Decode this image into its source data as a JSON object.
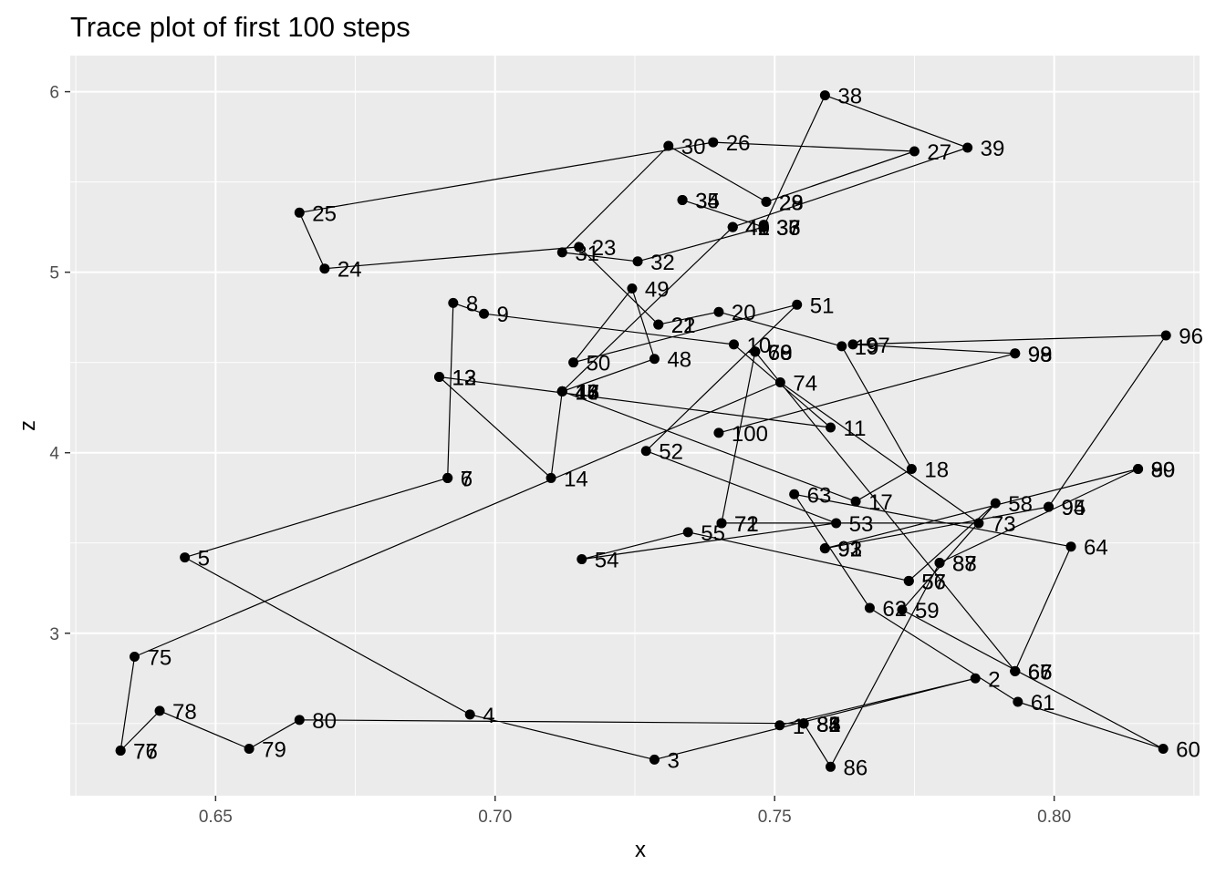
{
  "chart_data": {
    "type": "scatter",
    "title": "Trace plot of first 100 steps",
    "xlabel": "x",
    "ylabel": "z",
    "xlim": [
      0.624,
      0.826
    ],
    "ylim": [
      2.1,
      6.2
    ],
    "x_ticks": [
      0.65,
      0.7,
      0.75,
      0.8
    ],
    "x_tick_labels": [
      "0.65",
      "0.70",
      "0.75",
      "0.80"
    ],
    "y_ticks": [
      3,
      4,
      5,
      6
    ],
    "y_tick_labels": [
      "3",
      "4",
      "5",
      "6"
    ],
    "grid": true,
    "legend": "none",
    "colors": {
      "panel": "#ebebeb",
      "grid": "#ffffff",
      "points": "#000000",
      "path": "#000000"
    },
    "points": [
      {
        "step": "1",
        "x": 0.7509,
        "z": 2.49
      },
      {
        "step": "2",
        "x": 0.7859,
        "z": 2.75
      },
      {
        "step": "3",
        "x": 0.7285,
        "z": 2.3
      },
      {
        "step": "4",
        "x": 0.6955,
        "z": 2.55
      },
      {
        "step": "5",
        "x": 0.6445,
        "z": 3.42
      },
      {
        "step": "6",
        "x": 0.6915,
        "z": 3.86
      },
      {
        "step": "7",
        "x": 0.6915,
        "z": 3.86
      },
      {
        "step": "8",
        "x": 0.6925,
        "z": 4.83
      },
      {
        "step": "9",
        "x": 0.698,
        "z": 4.77
      },
      {
        "step": "10",
        "x": 0.7427,
        "z": 4.6
      },
      {
        "step": "11",
        "x": 0.76,
        "z": 4.14
      },
      {
        "step": "12",
        "x": 0.69,
        "z": 4.42
      },
      {
        "step": "13",
        "x": 0.69,
        "z": 4.42
      },
      {
        "step": "14",
        "x": 0.71,
        "z": 3.86
      },
      {
        "step": "15",
        "x": 0.712,
        "z": 4.34
      },
      {
        "step": "16",
        "x": 0.712,
        "z": 4.34
      },
      {
        "step": "17",
        "x": 0.7645,
        "z": 3.73
      },
      {
        "step": "18",
        "x": 0.7745,
        "z": 3.91
      },
      {
        "step": "19",
        "x": 0.762,
        "z": 4.59
      },
      {
        "step": "20",
        "x": 0.74,
        "z": 4.78
      },
      {
        "step": "21",
        "x": 0.7292,
        "z": 4.71
      },
      {
        "step": "22",
        "x": 0.7292,
        "z": 4.71
      },
      {
        "step": "23",
        "x": 0.715,
        "z": 5.14
      },
      {
        "step": "24",
        "x": 0.6695,
        "z": 5.02
      },
      {
        "step": "25",
        "x": 0.665,
        "z": 5.33
      },
      {
        "step": "26",
        "x": 0.739,
        "z": 5.72
      },
      {
        "step": "27",
        "x": 0.775,
        "z": 5.67
      },
      {
        "step": "28",
        "x": 0.7485,
        "z": 5.39
      },
      {
        "step": "29",
        "x": 0.7485,
        "z": 5.39
      },
      {
        "step": "30",
        "x": 0.731,
        "z": 5.7
      },
      {
        "step": "31",
        "x": 0.712,
        "z": 5.11
      },
      {
        "step": "32",
        "x": 0.7255,
        "z": 5.06
      },
      {
        "step": "33",
        "x": 0.748,
        "z": 5.25
      },
      {
        "step": "34",
        "x": 0.7335,
        "z": 5.4
      },
      {
        "step": "35",
        "x": 0.7335,
        "z": 5.4
      },
      {
        "step": "36",
        "x": 0.748,
        "z": 5.25
      },
      {
        "step": "37",
        "x": 0.748,
        "z": 5.25
      },
      {
        "step": "38",
        "x": 0.759,
        "z": 5.98
      },
      {
        "step": "39",
        "x": 0.7845,
        "z": 5.69
      },
      {
        "step": "40",
        "x": 0.7425,
        "z": 5.25
      },
      {
        "step": "41",
        "x": 0.7425,
        "z": 5.25
      },
      {
        "step": "42",
        "x": 0.7425,
        "z": 5.25
      },
      {
        "step": "43",
        "x": 0.712,
        "z": 4.34
      },
      {
        "step": "44",
        "x": 0.712,
        "z": 4.34
      },
      {
        "step": "45",
        "x": 0.712,
        "z": 4.34
      },
      {
        "step": "46",
        "x": 0.712,
        "z": 4.34
      },
      {
        "step": "47",
        "x": 0.712,
        "z": 4.34
      },
      {
        "step": "48",
        "x": 0.7285,
        "z": 4.52
      },
      {
        "step": "49",
        "x": 0.7245,
        "z": 4.91
      },
      {
        "step": "50",
        "x": 0.714,
        "z": 4.5
      },
      {
        "step": "51",
        "x": 0.754,
        "z": 4.82
      },
      {
        "step": "52",
        "x": 0.727,
        "z": 4.01
      },
      {
        "step": "53",
        "x": 0.761,
        "z": 3.61
      },
      {
        "step": "54",
        "x": 0.7155,
        "z": 3.41
      },
      {
        "step": "55",
        "x": 0.7345,
        "z": 3.56
      },
      {
        "step": "56",
        "x": 0.774,
        "z": 3.29
      },
      {
        "step": "57",
        "x": 0.774,
        "z": 3.29
      },
      {
        "step": "58",
        "x": 0.7895,
        "z": 3.72
      },
      {
        "step": "59",
        "x": 0.7728,
        "z": 3.13
      },
      {
        "step": "60",
        "x": 0.8195,
        "z": 2.36
      },
      {
        "step": "61",
        "x": 0.7935,
        "z": 2.62
      },
      {
        "step": "62",
        "x": 0.767,
        "z": 3.14
      },
      {
        "step": "63",
        "x": 0.7535,
        "z": 3.77
      },
      {
        "step": "64",
        "x": 0.803,
        "z": 3.48
      },
      {
        "step": "65",
        "x": 0.793,
        "z": 2.79
      },
      {
        "step": "66",
        "x": 0.793,
        "z": 2.79
      },
      {
        "step": "67",
        "x": 0.793,
        "z": 2.79
      },
      {
        "step": "68",
        "x": 0.7465,
        "z": 4.56
      },
      {
        "step": "69",
        "x": 0.7465,
        "z": 4.56
      },
      {
        "step": "70",
        "x": 0.7465,
        "z": 4.56
      },
      {
        "step": "71",
        "x": 0.7405,
        "z": 3.61
      },
      {
        "step": "72",
        "x": 0.7405,
        "z": 3.61
      },
      {
        "step": "73",
        "x": 0.7865,
        "z": 3.61
      },
      {
        "step": "74",
        "x": 0.751,
        "z": 4.39
      },
      {
        "step": "75",
        "x": 0.6355,
        "z": 2.87
      },
      {
        "step": "76",
        "x": 0.633,
        "z": 2.35
      },
      {
        "step": "77",
        "x": 0.633,
        "z": 2.35
      },
      {
        "step": "78",
        "x": 0.64,
        "z": 2.57
      },
      {
        "step": "79",
        "x": 0.656,
        "z": 2.36
      },
      {
        "step": "80",
        "x": 0.665,
        "z": 2.52
      },
      {
        "step": "81",
        "x": 0.7552,
        "z": 2.5
      },
      {
        "step": "82",
        "x": 0.7552,
        "z": 2.5
      },
      {
        "step": "83",
        "x": 0.7552,
        "z": 2.5
      },
      {
        "step": "84",
        "x": 0.7552,
        "z": 2.5
      },
      {
        "step": "85",
        "x": 0.7552,
        "z": 2.5
      },
      {
        "step": "86",
        "x": 0.76,
        "z": 2.26
      },
      {
        "step": "87",
        "x": 0.7795,
        "z": 3.39
      },
      {
        "step": "88",
        "x": 0.7795,
        "z": 3.39
      },
      {
        "step": "89",
        "x": 0.815,
        "z": 3.91
      },
      {
        "step": "90",
        "x": 0.815,
        "z": 3.91
      },
      {
        "step": "91",
        "x": 0.759,
        "z": 3.47
      },
      {
        "step": "92",
        "x": 0.759,
        "z": 3.47
      },
      {
        "step": "93",
        "x": 0.759,
        "z": 3.47
      },
      {
        "step": "94",
        "x": 0.799,
        "z": 3.7
      },
      {
        "step": "95",
        "x": 0.799,
        "z": 3.7
      },
      {
        "step": "96",
        "x": 0.82,
        "z": 4.65
      },
      {
        "step": "97",
        "x": 0.764,
        "z": 4.6
      },
      {
        "step": "98",
        "x": 0.793,
        "z": 4.55
      },
      {
        "step": "99",
        "x": 0.793,
        "z": 4.55
      },
      {
        "step": "100",
        "x": 0.74,
        "z": 4.11
      }
    ]
  }
}
